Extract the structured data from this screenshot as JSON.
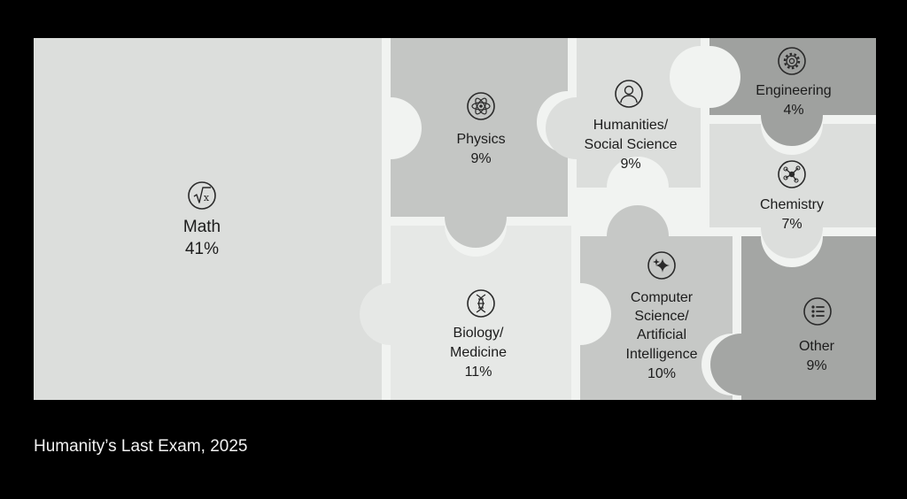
{
  "caption": "Humanity’s Last Exam, 2025",
  "chart_data": {
    "type": "treemap",
    "unit": "%",
    "segments": [
      {
        "key": "math",
        "label": [
          "Math"
        ],
        "value": 41,
        "value_label": "41%",
        "icon": "square-root-icon",
        "color": "#dcdedc"
      },
      {
        "key": "physics",
        "label": [
          "Physics"
        ],
        "value": 9,
        "value_label": "9%",
        "icon": "atom-icon",
        "color": "#c4c6c4"
      },
      {
        "key": "humanities",
        "label": [
          "Humanities/",
          "Social Science"
        ],
        "value": 9,
        "value_label": "9%",
        "icon": "person-icon",
        "color": "#dcdedc"
      },
      {
        "key": "engineering",
        "label": [
          "Engineering"
        ],
        "value": 4,
        "value_label": "4%",
        "icon": "gear-icon",
        "color": "#9fa19f"
      },
      {
        "key": "chemistry",
        "label": [
          "Chemistry"
        ],
        "value": 7,
        "value_label": "7%",
        "icon": "molecule-icon",
        "color": "#dcdedc"
      },
      {
        "key": "biology",
        "label": [
          "Biology/",
          "Medicine"
        ],
        "value": 11,
        "value_label": "11%",
        "icon": "dna-icon",
        "color": "#e6e8e6"
      },
      {
        "key": "cs",
        "label": [
          "Computer",
          "Science/",
          "Artificial",
          "Intelligence"
        ],
        "value": 10,
        "value_label": "10%",
        "icon": "sparkle-icon",
        "color": "#c6c8c6"
      },
      {
        "key": "other",
        "label": [
          "Other"
        ],
        "value": 9,
        "value_label": "9%",
        "icon": "list-icon",
        "color": "#a4a6a4"
      }
    ]
  }
}
